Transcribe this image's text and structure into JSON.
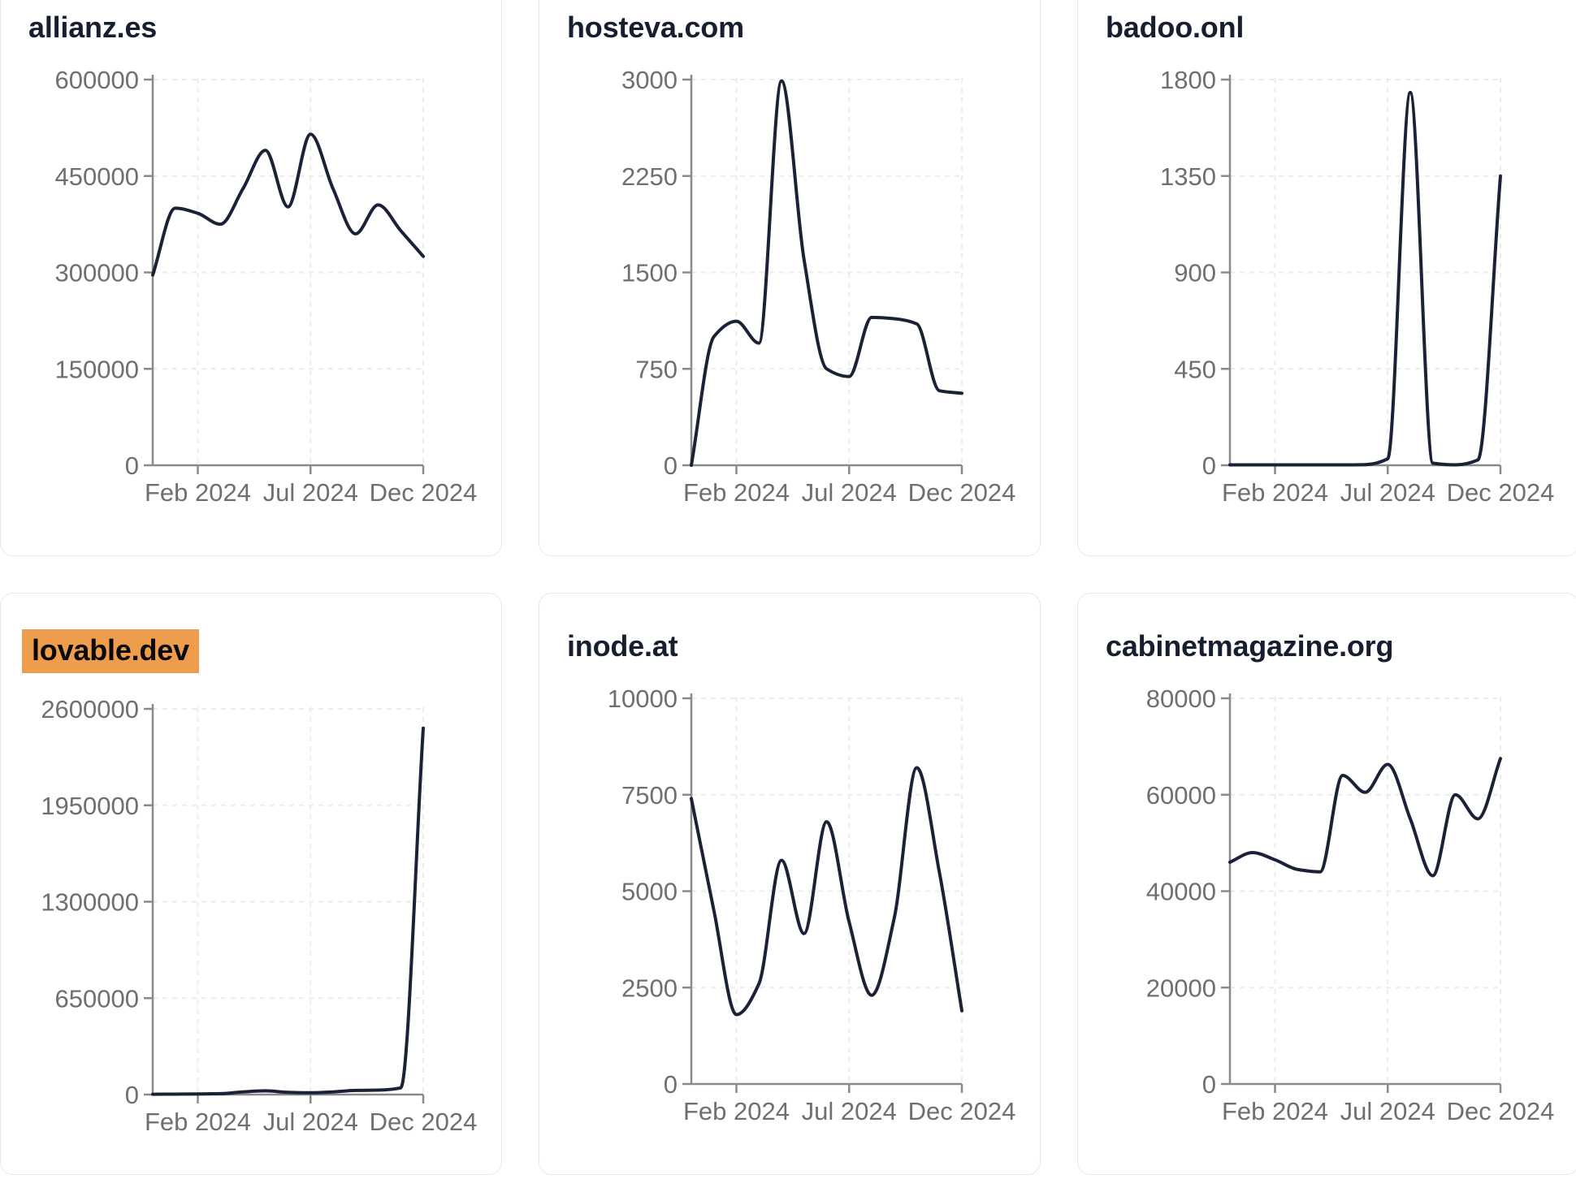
{
  "page": {
    "background_color": "#ffffff"
  },
  "theme": {
    "page_background": "#ffffff",
    "card_background": "#ffffff",
    "card_border_color": "#e6e9f2",
    "title_color": "#171e30",
    "line_color": "#1b2137",
    "axis_color": "#8a8a8a",
    "tick_label_color": "#6f6f6f",
    "grid_color": "#ececec",
    "highlight_color": "#ee9d4d",
    "highlight_text_color": "#0a0a0a"
  },
  "x_axis_tick_labels": [
    "Feb 2024",
    "Jul 2024",
    "Dec 2024"
  ],
  "chart_data": [
    {
      "type": "line",
      "title": "allianz.es",
      "highlighted": false,
      "x": [
        "Dec 2023",
        "Jan 2024",
        "Feb 2024",
        "Mar 2024",
        "Apr 2024",
        "May 2024",
        "Jun 2024",
        "Jul 2024",
        "Aug 2024",
        "Sep 2024",
        "Oct 2024",
        "Nov 2024",
        "Dec 2024"
      ],
      "values": [
        296000,
        400000,
        392000,
        375000,
        430000,
        490000,
        402000,
        515000,
        430000,
        360000,
        405000,
        365000,
        325000
      ],
      "ylim": [
        0,
        600000
      ],
      "yticks": [
        0,
        150000,
        300000,
        450000,
        600000
      ],
      "xtick_labels": [
        "Feb 2024",
        "Jul 2024",
        "Dec 2024"
      ],
      "xtick_indices": [
        2,
        7,
        12
      ],
      "grid": true,
      "legend": "none"
    },
    {
      "type": "line",
      "title": "hosteva.com",
      "highlighted": false,
      "x": [
        "Dec 2023",
        "Jan 2024",
        "Feb 2024",
        "Mar 2024",
        "Apr 2024",
        "May 2024",
        "Jun 2024",
        "Jul 2024",
        "Aug 2024",
        "Sep 2024",
        "Oct 2024",
        "Nov 2024",
        "Dec 2024"
      ],
      "values": [
        0,
        1000,
        1120,
        950,
        2990,
        1600,
        750,
        690,
        1150,
        1140,
        1100,
        580,
        560
      ],
      "ylim": [
        0,
        3000
      ],
      "yticks": [
        0,
        750,
        1500,
        2250,
        3000
      ],
      "xtick_labels": [
        "Feb 2024",
        "Jul 2024",
        "Dec 2024"
      ],
      "xtick_indices": [
        2,
        7,
        12
      ],
      "grid": true,
      "legend": "none"
    },
    {
      "type": "line",
      "title": "badoo.onl",
      "highlighted": false,
      "x": [
        "Dec 2023",
        "Jan 2024",
        "Feb 2024",
        "Mar 2024",
        "Apr 2024",
        "May 2024",
        "Jun 2024",
        "Jul 2024",
        "Aug 2024",
        "Sep 2024",
        "Oct 2024",
        "Nov 2024",
        "Dec 2024"
      ],
      "values": [
        2,
        2,
        2,
        2,
        2,
        2,
        3,
        30,
        1740,
        10,
        2,
        25,
        1350
      ],
      "ylim": [
        0,
        1800
      ],
      "yticks": [
        0,
        450,
        900,
        1350,
        1800
      ],
      "xtick_labels": [
        "Feb 2024",
        "Jul 2024",
        "Dec 2024"
      ],
      "xtick_indices": [
        2,
        7,
        12
      ],
      "grid": true,
      "legend": "none"
    },
    {
      "type": "line",
      "title": "lovable.dev",
      "highlighted": true,
      "x": [
        "Dec 2023",
        "Jan 2024",
        "Feb 2024",
        "Mar 2024",
        "Apr 2024",
        "May 2024",
        "Jun 2024",
        "Jul 2024",
        "Aug 2024",
        "Sep 2024",
        "Oct 2024",
        "Nov 2024",
        "Dec 2024"
      ],
      "values": [
        2000,
        3000,
        4000,
        6000,
        18000,
        25000,
        15000,
        12000,
        18000,
        28000,
        30000,
        45000,
        2470000
      ],
      "ylim": [
        0,
        2600000
      ],
      "yticks": [
        0,
        650000,
        1300000,
        1950000,
        2600000
      ],
      "xtick_labels": [
        "Feb 2024",
        "Jul 2024",
        "Dec 2024"
      ],
      "xtick_indices": [
        2,
        7,
        12
      ],
      "grid": true,
      "legend": "none"
    },
    {
      "type": "line",
      "title": "inode.at",
      "highlighted": false,
      "x": [
        "Dec 2023",
        "Jan 2024",
        "Feb 2024",
        "Mar 2024",
        "Apr 2024",
        "May 2024",
        "Jun 2024",
        "Jul 2024",
        "Aug 2024",
        "Sep 2024",
        "Oct 2024",
        "Nov 2024",
        "Dec 2024"
      ],
      "values": [
        7400,
        4500,
        1800,
        2600,
        5800,
        3900,
        6800,
        4200,
        2300,
        4300,
        8200,
        5500,
        1900
      ],
      "ylim": [
        0,
        10000
      ],
      "yticks": [
        0,
        2500,
        5000,
        7500,
        10000
      ],
      "xtick_labels": [
        "Feb 2024",
        "Jul 2024",
        "Dec 2024"
      ],
      "xtick_indices": [
        2,
        7,
        12
      ],
      "grid": true,
      "legend": "none"
    },
    {
      "type": "line",
      "title": "cabinetmagazine.org",
      "highlighted": false,
      "x": [
        "Dec 2023",
        "Jan 2024",
        "Feb 2024",
        "Mar 2024",
        "Apr 2024",
        "May 2024",
        "Jun 2024",
        "Jul 2024",
        "Aug 2024",
        "Sep 2024",
        "Oct 2024",
        "Nov 2024",
        "Dec 2024"
      ],
      "values": [
        46000,
        48000,
        46500,
        44500,
        44000,
        64000,
        60500,
        66300,
        55000,
        43200,
        60000,
        55000,
        67500
      ],
      "ylim": [
        0,
        80000
      ],
      "yticks": [
        0,
        20000,
        40000,
        60000,
        80000
      ],
      "xtick_labels": [
        "Feb 2024",
        "Jul 2024",
        "Dec 2024"
      ],
      "xtick_indices": [
        2,
        7,
        12
      ],
      "grid": true,
      "legend": "none"
    }
  ]
}
